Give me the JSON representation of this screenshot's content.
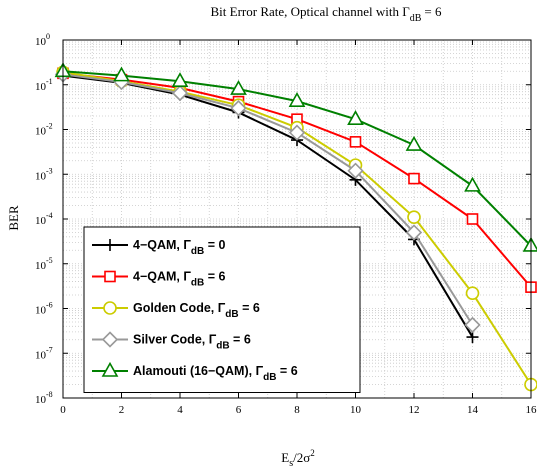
{
  "chart_data": {
    "type": "line",
    "title_main": "Bit Error Rate, Optical channel with Γ",
    "title_sub": "dB",
    "title_tail": "= 6",
    "xlabel_main": "E",
    "xlabel_sub": "s",
    "xlabel_tail": "/2σ",
    "xlabel_sup": "2",
    "ylabel": "BER",
    "xlim": [
      0,
      16
    ],
    "ylim_log10": [
      -8,
      0
    ],
    "y_scale": "log",
    "grid": true,
    "legend_position": "bottom-left",
    "x_ticks": [
      "0",
      "2",
      "4",
      "6",
      "8",
      "10",
      "12",
      "14",
      "16"
    ],
    "y_ticks": [
      {
        "base": "10",
        "exp": "0"
      },
      {
        "base": "10",
        "exp": "-1"
      },
      {
        "base": "10",
        "exp": "-2"
      },
      {
        "base": "10",
        "exp": "-3"
      },
      {
        "base": "10",
        "exp": "-4"
      },
      {
        "base": "10",
        "exp": "-5"
      },
      {
        "base": "10",
        "exp": "-6"
      },
      {
        "base": "10",
        "exp": "-7"
      },
      {
        "base": "10",
        "exp": "-8"
      }
    ],
    "series": [
      {
        "name_main": "4−QAM, Γ",
        "name_sub": "dB",
        "name_tail": " = 0",
        "color": "#000000",
        "marker": "plus",
        "x": [
          0,
          2,
          4,
          6,
          8,
          10,
          12,
          14
        ],
        "y": [
          0.16,
          0.11,
          0.06,
          0.024,
          0.0058,
          0.00075,
          3.5e-05,
          2.3e-07
        ]
      },
      {
        "name_main": "4−QAM, Γ",
        "name_sub": "dB",
        "name_tail": " = 6",
        "color": "#ff0000",
        "marker": "square",
        "x": [
          0,
          2,
          4,
          6,
          8,
          10,
          12,
          14,
          16
        ],
        "y": [
          0.18,
          0.13,
          0.085,
          0.042,
          0.017,
          0.0053,
          0.0008,
          0.0001,
          3e-06
        ]
      },
      {
        "name_main": "Golden Code, Γ",
        "name_sub": "dB",
        "name_tail": " = 6",
        "color": "#cccc00",
        "marker": "circle",
        "x": [
          0,
          2,
          4,
          6,
          8,
          10,
          12,
          14,
          16
        ],
        "y": [
          0.19,
          0.12,
          0.07,
          0.035,
          0.011,
          0.0016,
          0.00011,
          2.2e-06,
          2e-08
        ]
      },
      {
        "name_main": "Silver Code, Γ",
        "name_sub": "dB",
        "name_tail": " = 6",
        "color": "#999999",
        "marker": "diamond",
        "x": [
          0,
          2,
          4,
          6,
          8,
          10,
          12,
          14
        ],
        "y": [
          0.17,
          0.115,
          0.065,
          0.03,
          0.0085,
          0.0012,
          5e-05,
          4.3e-07
        ]
      },
      {
        "name_main": "Alamouti (16−QAM), Γ",
        "name_sub": "dB",
        "name_tail": " = 6",
        "color": "#008000",
        "marker": "triangle",
        "x": [
          0,
          2,
          4,
          6,
          8,
          10,
          12,
          14,
          16
        ],
        "y": [
          0.2,
          0.16,
          0.12,
          0.08,
          0.043,
          0.017,
          0.0045,
          0.00055,
          2.5e-05
        ]
      }
    ]
  }
}
